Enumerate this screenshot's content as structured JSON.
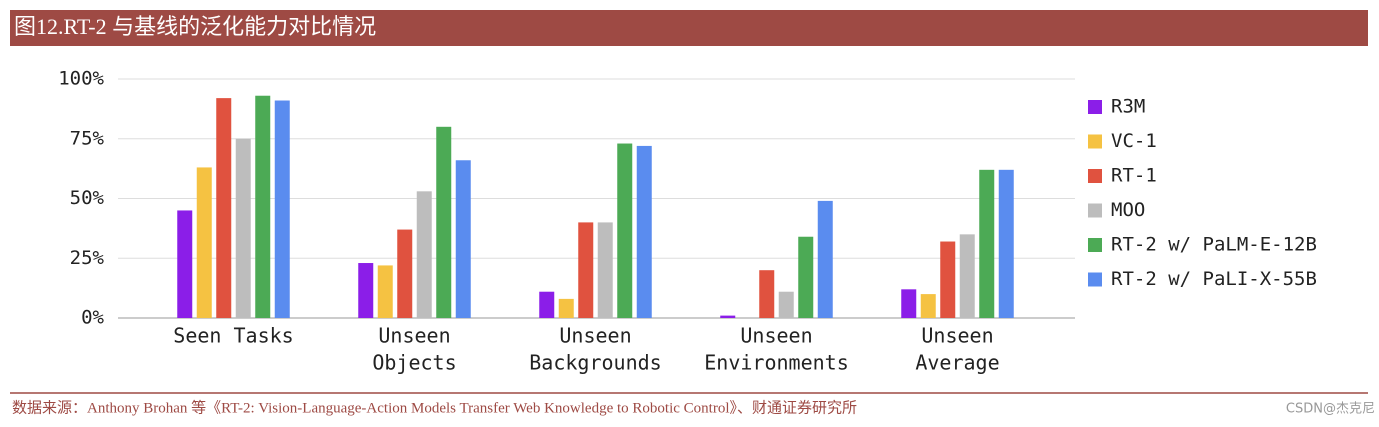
{
  "header": {
    "title": "图12.RT-2 与基线的泛化能力对比情况"
  },
  "chart_data": {
    "type": "bar",
    "categories": [
      [
        "Seen Tasks"
      ],
      [
        "Unseen",
        "Objects"
      ],
      [
        "Unseen",
        "Backgrounds"
      ],
      [
        "Unseen",
        "Environments"
      ],
      [
        "Unseen",
        "Average"
      ]
    ],
    "series": [
      {
        "name": "R3M",
        "color": "#8b1ee8",
        "values": [
          45,
          23,
          11,
          1,
          12
        ]
      },
      {
        "name": "VC-1",
        "color": "#f5c242",
        "values": [
          63,
          22,
          8,
          0,
          10
        ]
      },
      {
        "name": "RT-1",
        "color": "#e0523f",
        "values": [
          92,
          37,
          40,
          20,
          32
        ]
      },
      {
        "name": "MOO",
        "color": "#bdbdbd",
        "values": [
          75,
          53,
          40,
          11,
          35
        ]
      },
      {
        "name": "RT-2 w/ PaLM-E-12B",
        "color": "#4caa55",
        "values": [
          93,
          80,
          73,
          34,
          62
        ]
      },
      {
        "name": "RT-2 w/ PaLI-X-55B",
        "color": "#5a8cef",
        "values": [
          91,
          66,
          72,
          49,
          62
        ]
      }
    ],
    "ylim": [
      0,
      100
    ],
    "yticks": [
      {
        "value": 0,
        "label": "0%"
      },
      {
        "value": 25,
        "label": "25%"
      },
      {
        "value": 50,
        "label": "50%"
      },
      {
        "value": 75,
        "label": "75%"
      },
      {
        "value": 100,
        "label": "100%"
      }
    ],
    "grid": true,
    "legend": "right"
  },
  "footer": {
    "source": "数据来源：Anthony Brohan 等《RT-2: Vision-Language-Action Models Transfer Web Knowledge to Robotic Control》、财通证券研究所",
    "watermark": "CSDN@杰克尼"
  }
}
